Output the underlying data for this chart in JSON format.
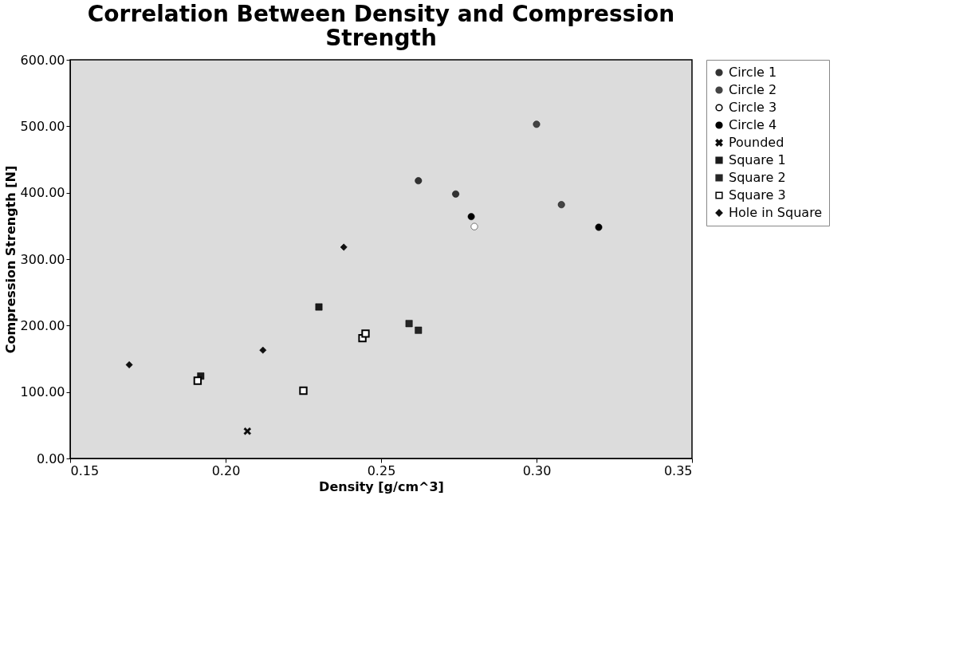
{
  "chart_data": {
    "type": "scatter",
    "title": "Correlation Between Density and Compression Strength",
    "xlabel": "Density [g/cm^3]",
    "ylabel": "Compression Strength [N]",
    "xlim": [
      0.15,
      0.35
    ],
    "ylim": [
      0,
      600
    ],
    "xticks": [
      {
        "value": 0.15,
        "label": "0.15"
      },
      {
        "value": 0.2,
        "label": "0.20"
      },
      {
        "value": 0.25,
        "label": "0.25"
      },
      {
        "value": 0.3,
        "label": "0.30"
      },
      {
        "value": 0.35,
        "label": "0.35"
      }
    ],
    "yticks": [
      {
        "value": 0,
        "label": "0.00"
      },
      {
        "value": 100,
        "label": "100.00"
      },
      {
        "value": 200,
        "label": "200.00"
      },
      {
        "value": 300,
        "label": "300.00"
      },
      {
        "value": 400,
        "label": "400.00"
      },
      {
        "value": 500,
        "label": "500.00"
      },
      {
        "value": 600,
        "label": "600.00"
      }
    ],
    "grid": false,
    "legend": "right",
    "series": [
      {
        "name": "Circle 1",
        "color": "#333333",
        "marker": "circle",
        "x": [
          0.262,
          0.274
        ],
        "values": [
          418,
          398
        ]
      },
      {
        "name": "Circle 2",
        "color": "#444444",
        "marker": "circle",
        "x": [
          0.3,
          0.308
        ],
        "values": [
          503,
          382
        ]
      },
      {
        "name": "Circle 3",
        "color": "#ffffff",
        "marker": "circle",
        "x": [
          0.28
        ],
        "values": [
          349
        ]
      },
      {
        "name": "Circle 4",
        "color": "#000000",
        "marker": "circle",
        "x": [
          0.279,
          0.32
        ],
        "values": [
          364,
          348
        ]
      },
      {
        "name": "Pounded",
        "color": "#0d0d0d",
        "marker": "cross",
        "x": [
          0.207
        ],
        "values": [
          41
        ]
      },
      {
        "name": "Square 1",
        "color": "#1a1a1a",
        "marker": "square",
        "x": [
          0.192,
          0.23
        ],
        "values": [
          124,
          228
        ]
      },
      {
        "name": "Square 2",
        "color": "#262626",
        "marker": "square",
        "x": [
          0.259,
          0.262
        ],
        "values": [
          203,
          193
        ]
      },
      {
        "name": "Square 3",
        "color": "#000000",
        "marker": "square_open",
        "x": [
          0.191,
          0.225,
          0.244,
          0.245
        ],
        "values": [
          117,
          102,
          181,
          188
        ]
      },
      {
        "name": "Hole in Square",
        "color": "#101010",
        "marker": "diamond",
        "x": [
          0.169,
          0.212,
          0.238
        ],
        "values": [
          141,
          163,
          318
        ]
      }
    ]
  }
}
